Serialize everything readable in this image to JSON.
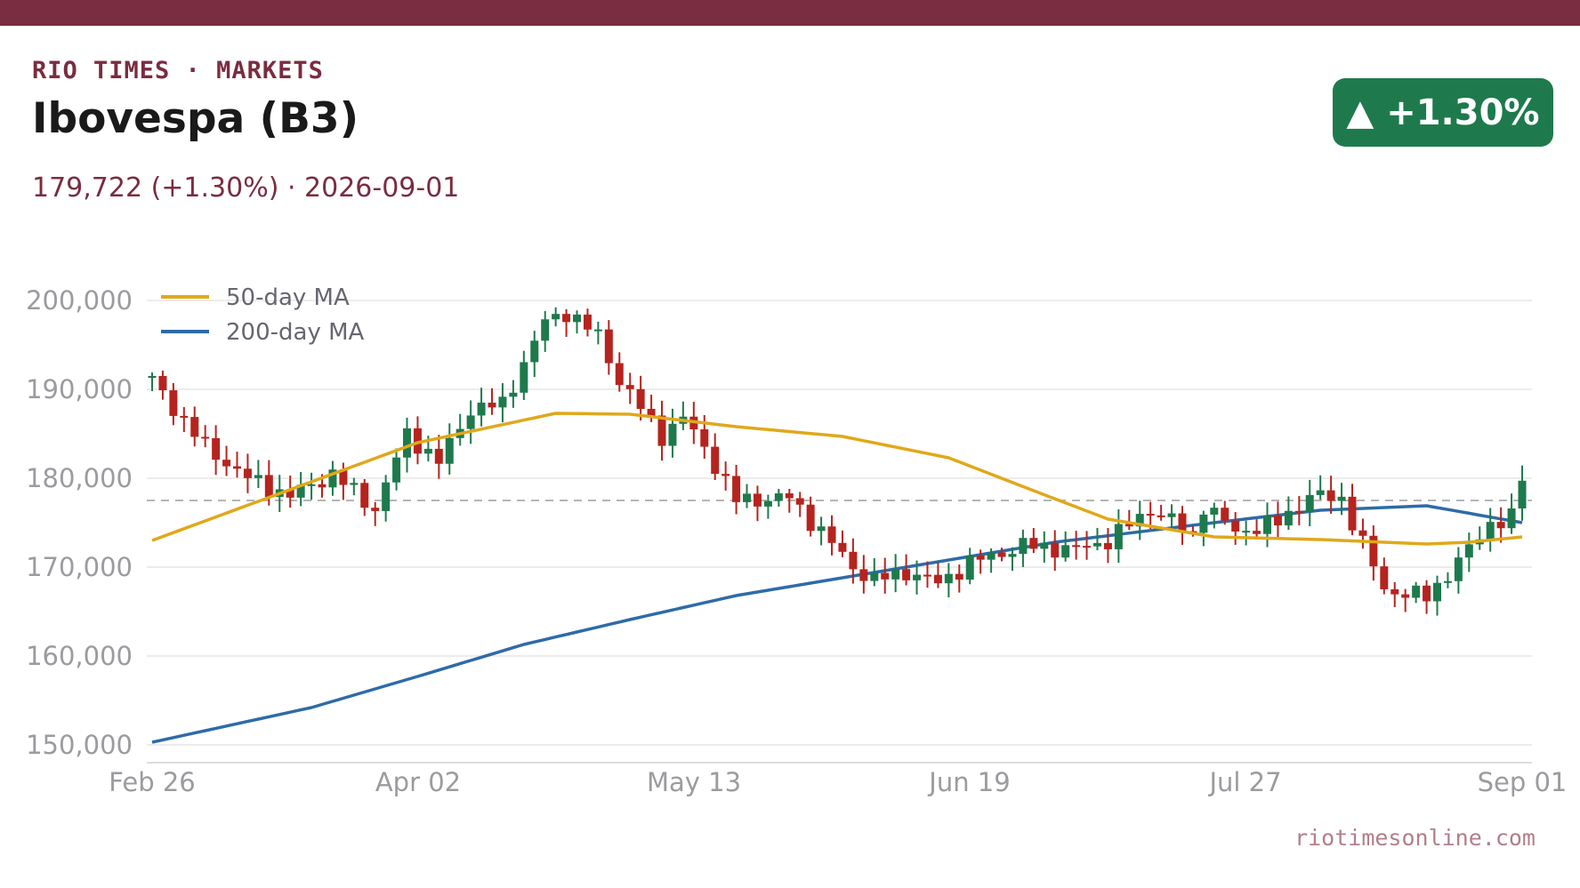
{
  "header": {
    "kicker": "RIO TIMES · MARKETS",
    "title": "Ibovespa (B3)",
    "subtitle": "179,722 (+1.30%)  ·  2026-09-01",
    "badge": "▲ +1.30%",
    "footer": "riotimesonline.com"
  },
  "colors": {
    "accent": "#7a2c40",
    "up": "#1e7a4c",
    "down": "#b5241f",
    "ma50": "#e0a81a",
    "ma200": "#2e6ba8"
  },
  "chart_data": {
    "type": "candlestick",
    "ylim": [
      148000,
      202000
    ],
    "y_ticks": [
      "150,000",
      "160,000",
      "170,000",
      "180,000",
      "190,000",
      "200,000"
    ],
    "y_tick_values": [
      150000,
      160000,
      170000,
      180000,
      190000,
      200000
    ],
    "x_ticks": [
      "Feb 26",
      "Apr 02",
      "May 13",
      "Jun 19",
      "Jul 27",
      "Sep 01"
    ],
    "reference_line": 177500,
    "grid": true,
    "legend_position": "top-left",
    "legend": [
      {
        "name": "50-day MA",
        "color": "#e0a81a"
      },
      {
        "name": "200-day MA",
        "color": "#2e6ba8"
      }
    ],
    "close_points": [
      [
        0,
        191000
      ],
      [
        5,
        183500
      ],
      [
        9,
        180000
      ],
      [
        13,
        178000
      ],
      [
        17,
        180500
      ],
      [
        21,
        176500
      ],
      [
        24,
        185000
      ],
      [
        27,
        181800
      ],
      [
        30,
        187800
      ],
      [
        33,
        188300
      ],
      [
        35,
        193000
      ],
      [
        37,
        197600
      ],
      [
        39,
        198700
      ],
      [
        42,
        196000
      ],
      [
        44,
        191000
      ],
      [
        48,
        184800
      ],
      [
        50,
        186800
      ],
      [
        52,
        183500
      ],
      [
        55,
        177500
      ],
      [
        60,
        177800
      ],
      [
        63,
        174000
      ],
      [
        66,
        170000
      ],
      [
        68,
        168500
      ],
      [
        71,
        169500
      ],
      [
        74,
        168200
      ],
      [
        77,
        170500
      ],
      [
        82,
        172400
      ],
      [
        87,
        172000
      ],
      [
        90,
        173000
      ],
      [
        94,
        176500
      ],
      [
        96,
        175200
      ],
      [
        98,
        173500
      ],
      [
        99,
        177000
      ],
      [
        102,
        174000
      ],
      [
        106,
        175000
      ],
      [
        109,
        178000
      ],
      [
        112,
        177700
      ],
      [
        114,
        172600
      ],
      [
        116,
        167500
      ],
      [
        120,
        166600
      ],
      [
        124,
        172000
      ],
      [
        126,
        175000
      ],
      [
        128,
        175500
      ],
      [
        129,
        179722
      ]
    ],
    "ma50": [
      [
        0,
        173000
      ],
      [
        15,
        179600
      ],
      [
        25,
        184000
      ],
      [
        38,
        187300
      ],
      [
        45,
        187200
      ],
      [
        55,
        185800
      ],
      [
        65,
        184700
      ],
      [
        75,
        182300
      ],
      [
        83,
        178600
      ],
      [
        90,
        175400
      ],
      [
        100,
        173400
      ],
      [
        110,
        173100
      ],
      [
        120,
        172600
      ],
      [
        124,
        172800
      ],
      [
        129,
        173400
      ]
    ],
    "ma200": [
      [
        0,
        150300
      ],
      [
        15,
        154200
      ],
      [
        25,
        157700
      ],
      [
        35,
        161300
      ],
      [
        45,
        164100
      ],
      [
        55,
        166800
      ],
      [
        65,
        168800
      ],
      [
        75,
        170800
      ],
      [
        85,
        172800
      ],
      [
        100,
        175000
      ],
      [
        110,
        176400
      ],
      [
        120,
        176900
      ],
      [
        129,
        175000
      ]
    ]
  }
}
